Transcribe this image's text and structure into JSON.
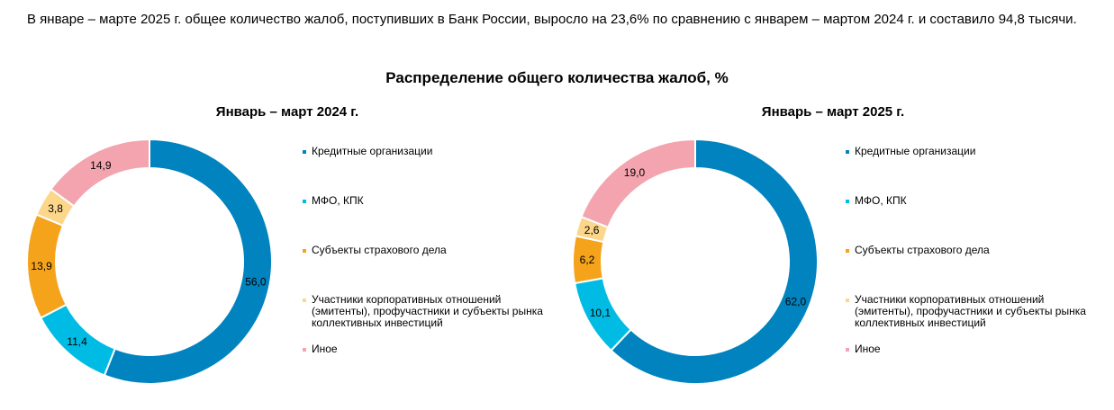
{
  "intro_text": "В январе – марте 2025 г. общее количество жалоб, поступивших в Банк России, выросло на 23,6% по сравнению с январем – мартом 2024 г. и составило 94,8 тысячи.",
  "colors": {
    "credit": "#0083BE",
    "mfo": "#00BCE4",
    "insurance": "#F5A31B",
    "corporate": "#FCD68A",
    "other": "#F4A4AE"
  },
  "chart_data": [
    {
      "type": "pie",
      "title": "Распределение общего количества жалоб, %",
      "subtitle": "Январь – март 2024 г.",
      "categories": [
        "Кредитные организации",
        "МФО, КПК",
        "Субъекты страхового дела",
        "Участники корпоративных отношений (эмитенты), профучастники и субъекты рынка коллективных инвестиций",
        "Иное"
      ],
      "values": [
        56.0,
        11.4,
        13.9,
        3.8,
        14.9
      ],
      "value_labels": [
        "56,0",
        "11,4",
        "13,9",
        "3,8",
        "14,9"
      ],
      "donut": true,
      "legend": "right"
    },
    {
      "type": "pie",
      "title": "Распределение общего количества жалоб, %",
      "subtitle": "Январь – март 2025 г.",
      "categories": [
        "Кредитные организации",
        "МФО, КПК",
        "Субъекты страхового дела",
        "Участники корпоративных отношений (эмитенты), профучастники и субъекты рынка коллективных инвестиций",
        "Иное"
      ],
      "values": [
        62.0,
        10.1,
        6.2,
        2.6,
        19.0
      ],
      "value_labels": [
        "62,0",
        "10,1",
        "6,2",
        "2,6",
        "19,0"
      ],
      "donut": true,
      "legend": "right"
    }
  ]
}
